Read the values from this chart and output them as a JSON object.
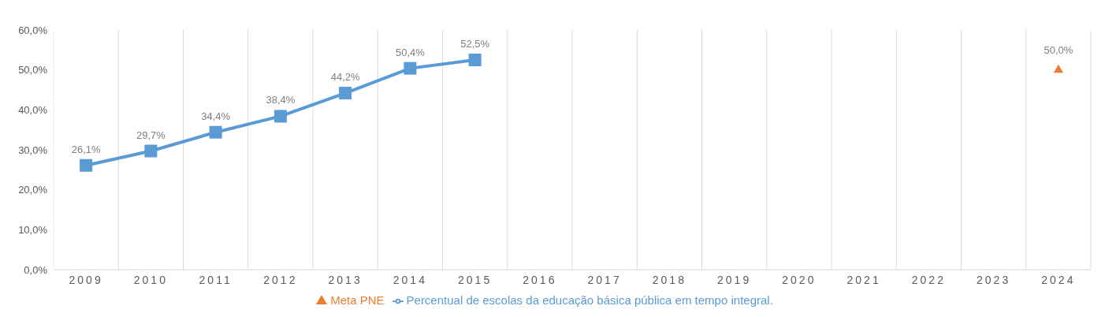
{
  "chart_data": {
    "type": "line",
    "categories": [
      "2009",
      "2010",
      "2011",
      "2012",
      "2013",
      "2014",
      "2015",
      "2016",
      "2017",
      "2018",
      "2019",
      "2020",
      "2021",
      "2022",
      "2023",
      "2024"
    ],
    "series": [
      {
        "name": "Percentual de escolas da educação básica pública em tempo integral.",
        "color": "#5b9bd5",
        "marker": "square",
        "values": [
          26.1,
          29.7,
          34.4,
          38.4,
          44.2,
          50.4,
          52.5,
          null,
          null,
          null,
          null,
          null,
          null,
          null,
          null,
          null
        ],
        "value_labels": [
          "26,1%",
          "29,7%",
          "34,4%",
          "38,4%",
          "44,2%",
          "50,4%",
          "52,5%",
          null,
          null,
          null,
          null,
          null,
          null,
          null,
          null,
          null
        ]
      },
      {
        "name": "Meta PNE",
        "type": "scatter",
        "color": "#ed7d31",
        "marker": "triangle",
        "values": [
          null,
          null,
          null,
          null,
          null,
          null,
          null,
          null,
          null,
          null,
          null,
          null,
          null,
          null,
          null,
          50.0
        ],
        "value_labels": [
          null,
          null,
          null,
          null,
          null,
          null,
          null,
          null,
          null,
          null,
          null,
          null,
          null,
          null,
          null,
          "50,0%"
        ]
      }
    ],
    "ylim": [
      0,
      60
    ],
    "yticks": [
      {
        "value": 0,
        "label": "0,0%"
      },
      {
        "value": 10,
        "label": "10,0%"
      },
      {
        "value": 20,
        "label": "20,0%"
      },
      {
        "value": 30,
        "label": "30,0%"
      },
      {
        "value": 40,
        "label": "40,0%"
      },
      {
        "value": 50,
        "label": "50,0%"
      },
      {
        "value": 60,
        "label": "60,0%"
      }
    ],
    "grid": "x",
    "legend": "bottom",
    "line_style": "solid"
  }
}
